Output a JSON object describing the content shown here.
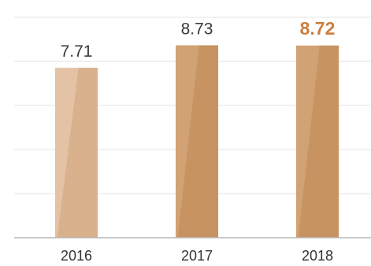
{
  "chart_data": {
    "type": "bar",
    "categories": [
      "2016",
      "2017",
      "2018"
    ],
    "values": [
      7.71,
      8.73,
      8.72
    ],
    "value_labels": [
      "7.71",
      "8.73",
      "8.72"
    ],
    "highlight_index": 2,
    "title": "",
    "xlabel": "",
    "ylabel": "",
    "ylim": [
      0,
      10
    ],
    "grid": true,
    "legend": "none",
    "colors": {
      "bar_light": "#e3c2a6",
      "bar_dark": "#d1a273",
      "bar_light_shade": "#d8ae88",
      "bar_dark_shade": "#c6915e",
      "highlight_label": "#c97f3f",
      "grid": "#e3e3e3",
      "axis": "#b5b5b5"
    }
  }
}
